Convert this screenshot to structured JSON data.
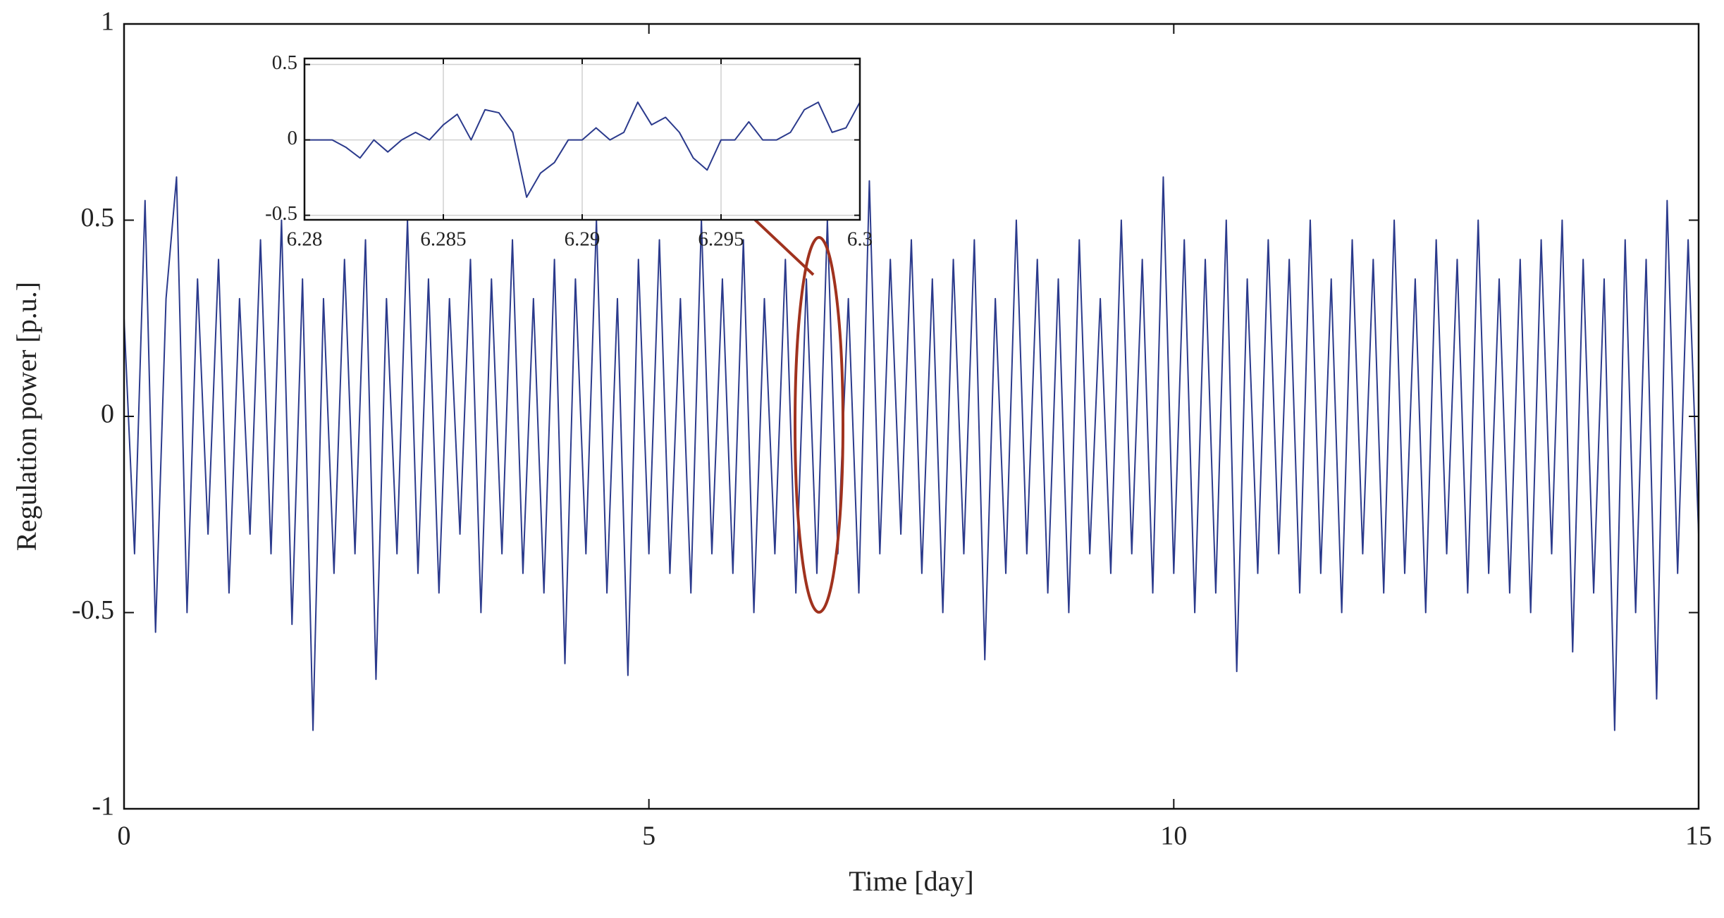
{
  "chart_data": [
    {
      "type": "line",
      "xlabel": "Time [day]",
      "ylabel": "Regulation power [p.u.]",
      "xlim": [
        0,
        15
      ],
      "ylim": [
        -1,
        1
      ],
      "xticks": [
        0,
        5,
        10,
        15
      ],
      "yticks": [
        -1,
        -0.5,
        0,
        0.5,
        1
      ],
      "grid": false,
      "series": [
        {
          "color": "#2b3a8c",
          "x": [
            0,
            0.1,
            0.2,
            0.3,
            0.4,
            0.5,
            0.6,
            0.7,
            0.8,
            0.9,
            1,
            1.1,
            1.2,
            1.3,
            1.4,
            1.5,
            1.6,
            1.7,
            1.8,
            1.9,
            2,
            2.1,
            2.2,
            2.3,
            2.4,
            2.5,
            2.6,
            2.7,
            2.8,
            2.9,
            3,
            3.1,
            3.2,
            3.3,
            3.4,
            3.5,
            3.6,
            3.7,
            3.8,
            3.9,
            4,
            4.1,
            4.2,
            4.3,
            4.4,
            4.5,
            4.6,
            4.7,
            4.8,
            4.9,
            5,
            5.1,
            5.2,
            5.3,
            5.4,
            5.5,
            5.6,
            5.7,
            5.8,
            5.9,
            6,
            6.1,
            6.2,
            6.3,
            6.4,
            6.5,
            6.6,
            6.7,
            6.8,
            6.9,
            7,
            7.1,
            7.2,
            7.3,
            7.4,
            7.5,
            7.6,
            7.7,
            7.8,
            7.9,
            8,
            8.1,
            8.2,
            8.3,
            8.4,
            8.5,
            8.6,
            8.7,
            8.8,
            8.9,
            9,
            9.1,
            9.2,
            9.3,
            9.4,
            9.5,
            9.6,
            9.7,
            9.8,
            9.9,
            10,
            10.1,
            10.2,
            10.3,
            10.4,
            10.5,
            10.6,
            10.7,
            10.8,
            10.9,
            11,
            11.1,
            11.2,
            11.3,
            11.4,
            11.5,
            11.6,
            11.7,
            11.8,
            11.9,
            12,
            12.1,
            12.2,
            12.3,
            12.4,
            12.5,
            12.6,
            12.7,
            12.8,
            12.9,
            13,
            13.1,
            13.2,
            13.3,
            13.4,
            13.5,
            13.6,
            13.7,
            13.8,
            13.9,
            14,
            14.1,
            14.2,
            14.3,
            14.4,
            14.5,
            14.6,
            14.7,
            14.8,
            14.9,
            15
          ],
          "values": [
            0.25,
            -0.35,
            0.55,
            -0.55,
            0.3,
            0.61,
            -0.5,
            0.35,
            -0.3,
            0.4,
            -0.45,
            0.3,
            -0.3,
            0.45,
            -0.35,
            0.5,
            -0.53,
            0.35,
            -0.8,
            0.3,
            -0.4,
            0.4,
            -0.35,
            0.45,
            -0.67,
            0.3,
            -0.35,
            0.5,
            -0.4,
            0.35,
            -0.45,
            0.3,
            -0.3,
            0.4,
            -0.5,
            0.35,
            -0.35,
            0.45,
            -0.4,
            0.3,
            -0.45,
            0.4,
            -0.63,
            0.35,
            -0.35,
            0.5,
            -0.45,
            0.3,
            -0.66,
            0.4,
            -0.35,
            0.45,
            -0.4,
            0.3,
            -0.45,
            0.5,
            -0.35,
            0.35,
            -0.4,
            0.45,
            -0.5,
            0.3,
            -0.35,
            0.4,
            -0.45,
            0.35,
            -0.4,
            0.5,
            -0.35,
            0.3,
            -0.45,
            0.6,
            -0.35,
            0.4,
            -0.3,
            0.45,
            -0.4,
            0.35,
            -0.5,
            0.4,
            -0.35,
            0.45,
            -0.62,
            0.3,
            -0.4,
            0.5,
            -0.35,
            0.4,
            -0.45,
            0.35,
            -0.5,
            0.45,
            -0.35,
            0.3,
            -0.4,
            0.5,
            -0.35,
            0.4,
            -0.45,
            0.61,
            -0.4,
            0.45,
            -0.5,
            0.4,
            -0.45,
            0.5,
            -0.65,
            0.35,
            -0.4,
            0.45,
            -0.35,
            0.4,
            -0.45,
            0.5,
            -0.4,
            0.35,
            -0.5,
            0.45,
            -0.35,
            0.4,
            -0.45,
            0.5,
            -0.4,
            0.35,
            -0.5,
            0.45,
            -0.35,
            0.4,
            -0.45,
            0.5,
            -0.4,
            0.35,
            -0.45,
            0.4,
            -0.5,
            0.45,
            -0.35,
            0.5,
            -0.6,
            0.4,
            -0.45,
            0.35,
            -0.8,
            0.45,
            -0.5,
            0.4,
            -0.72,
            0.55,
            -0.4,
            0.45,
            -0.3
          ]
        }
      ]
    },
    {
      "type": "line",
      "xlim": [
        6.28,
        6.3
      ],
      "ylim": [
        -0.53,
        0.54
      ],
      "xticks": [
        6.28,
        6.285,
        6.29,
        6.295,
        6.3
      ],
      "yticks": [
        -0.5,
        0,
        0.5
      ],
      "grid": true,
      "series": [
        {
          "color": "#2b3a8c",
          "x": [
            6.28,
            6.2805,
            6.281,
            6.2815,
            6.282,
            6.2825,
            6.283,
            6.2835,
            6.284,
            6.2845,
            6.285,
            6.2855,
            6.286,
            6.2865,
            6.287,
            6.2875,
            6.288,
            6.2885,
            6.289,
            6.2895,
            6.29,
            6.2905,
            6.291,
            6.2915,
            6.292,
            6.2925,
            6.293,
            6.2935,
            6.294,
            6.2945,
            6.295,
            6.2955,
            6.296,
            6.2965,
            6.297,
            6.2975,
            6.298,
            6.2985,
            6.299,
            6.2995,
            6.3
          ],
          "values": [
            0,
            0,
            0,
            -0.05,
            -0.12,
            0,
            -0.08,
            0,
            0.05,
            0,
            0.1,
            0.17,
            0,
            0.2,
            0.18,
            0.05,
            -0.38,
            -0.22,
            -0.15,
            0,
            0,
            0.08,
            0,
            0.05,
            0.25,
            0.1,
            0.15,
            0.05,
            -0.12,
            -0.2,
            0,
            0,
            0.12,
            0,
            0,
            0.05,
            0.2,
            0.25,
            0.05,
            0.08,
            0.25
          ]
        }
      ]
    }
  ]
}
